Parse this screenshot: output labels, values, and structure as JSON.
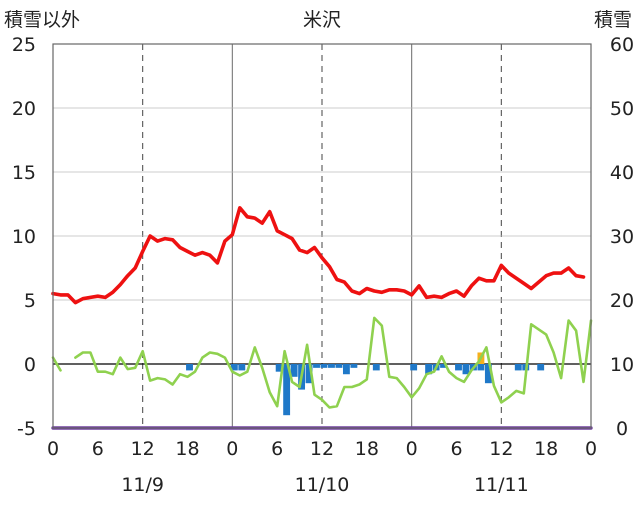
{
  "chart_data": {
    "type": "line",
    "title": "米沢",
    "y_left_label": "積雪以外",
    "y_right_label": "積雪",
    "y_left_range": [
      -5,
      25
    ],
    "y_left_ticks": [
      "25",
      "20",
      "15",
      "10",
      "5",
      "0",
      "-5"
    ],
    "y_right_range": [
      0,
      60
    ],
    "y_right_ticks": [
      "60",
      "50",
      "40",
      "30",
      "20",
      "10",
      "0"
    ],
    "x_range_hours": [
      0,
      72
    ],
    "x_tick_labels": [
      "0",
      "6",
      "12",
      "18",
      "0",
      "6",
      "12",
      "18",
      "0",
      "6",
      "12",
      "18",
      "0"
    ],
    "date_labels": [
      "11/9",
      "11/10",
      "11/11"
    ],
    "grid": "dashed vertical at 12h; solid vertical at day boundaries",
    "colors": {
      "temperature": "#ee1111",
      "dewpoint": "#8fd14f",
      "precip_blue": "#1f78c8",
      "precip_orange": "#f5b01c",
      "snow_depth": "#7040a0",
      "zero_line": "#000000",
      "grid": "#555555",
      "frame": "#666666"
    },
    "series": [
      {
        "key": "temperature",
        "axis": "left",
        "values": [
          5.5,
          5.4,
          5.4,
          4.8,
          5.1,
          5.2,
          5.3,
          5.2,
          5.6,
          6.2,
          6.9,
          7.5,
          8.8,
          10.0,
          9.6,
          9.8,
          9.7,
          9.1,
          8.8,
          8.5,
          8.7,
          8.5,
          7.9,
          9.6,
          10.1,
          12.2,
          11.5,
          11.4,
          11.0,
          11.9,
          10.4,
          10.1,
          9.8,
          8.9,
          8.7,
          9.1,
          8.3,
          7.6,
          6.6,
          6.4,
          5.7,
          5.5,
          5.9,
          5.7,
          5.6,
          5.8,
          5.8,
          5.7,
          5.4,
          6.1,
          5.2,
          5.3,
          5.2,
          5.5,
          5.7,
          5.3,
          6.1,
          6.7,
          6.5,
          6.5,
          7.7,
          7.1,
          6.7,
          6.3,
          5.9,
          6.4,
          6.9,
          7.1,
          7.1,
          7.5,
          6.9,
          6.8
        ]
      },
      {
        "key": "dewpoint",
        "axis": "left",
        "values": [
          0.5,
          -0.5,
          null,
          0.5,
          0.9,
          0.9,
          -0.6,
          -0.6,
          -0.8,
          0.5,
          -0.4,
          -0.3,
          1.0,
          -1.3,
          -1.1,
          -1.2,
          -1.6,
          -0.8,
          -1.0,
          -0.6,
          0.5,
          0.9,
          0.8,
          0.5,
          -0.6,
          -0.9,
          -0.6,
          1.3,
          -0.3,
          -2.2,
          -3.3,
          1.0,
          -1.4,
          -1.8,
          1.5,
          -2.4,
          -2.8,
          -3.4,
          -3.3,
          -1.8,
          -1.8,
          -1.6,
          -1.2,
          3.6,
          3.0,
          -1.0,
          -1.1,
          -1.8,
          -2.6,
          -1.9,
          -0.8,
          -0.6,
          0.6,
          -0.6,
          -1.1,
          -1.4,
          -0.5,
          0.2,
          1.3,
          -1.7,
          -3.0,
          -2.6,
          -2.1,
          -2.3,
          3.1,
          2.7,
          2.3,
          0.9,
          -1.1,
          3.4,
          2.6,
          -1.4,
          3.4
        ]
      },
      {
        "key": "precip",
        "axis": "left",
        "note": "hourly bars below zero line",
        "values": [
          0,
          0,
          0,
          0,
          0,
          0,
          0,
          0,
          0,
          0,
          0,
          0,
          0,
          0,
          0,
          0,
          0,
          0,
          -0.5,
          0,
          0,
          0,
          0,
          0,
          -0.5,
          -0.5,
          0,
          0,
          0,
          0,
          -0.6,
          -4.0,
          -1.0,
          -2.0,
          -1.5,
          -0.3,
          -0.3,
          -0.3,
          -0.3,
          -0.8,
          -0.3,
          0,
          0,
          -0.5,
          0,
          0,
          0,
          0,
          -0.5,
          0,
          -0.8,
          -0.5,
          -0.3,
          0,
          -0.5,
          -0.8,
          -0.5,
          -0.5,
          -1.5,
          0,
          0,
          0,
          -0.5,
          -0.5,
          0,
          -0.5,
          0,
          0,
          0,
          0,
          0,
          0
        ]
      },
      {
        "key": "precip_other",
        "axis": "left",
        "note": "orange bar above zero line",
        "values": [
          {
            "hour": 57,
            "value": 0.9
          }
        ]
      },
      {
        "key": "snow_depth",
        "axis": "right",
        "values": [
          0,
          0,
          0
        ]
      }
    ]
  }
}
